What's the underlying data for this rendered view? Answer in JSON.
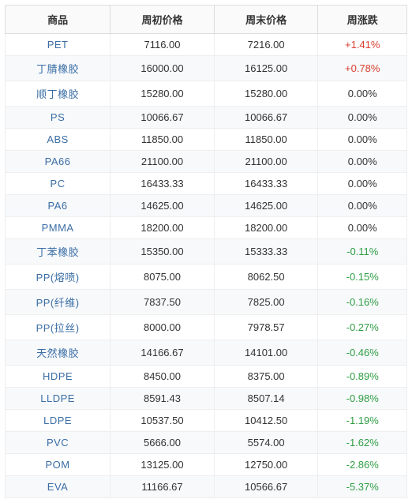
{
  "table": {
    "columns": [
      "商品",
      "周初价格",
      "周末价格",
      "周涨跌"
    ],
    "rows": [
      {
        "name": "PET",
        "start": "7116.00",
        "end": "7216.00",
        "change": "+1.41%",
        "dir": "up"
      },
      {
        "name": "丁腈橡胶",
        "start": "16000.00",
        "end": "16125.00",
        "change": "+0.78%",
        "dir": "up"
      },
      {
        "name": "顺丁橡胶",
        "start": "15280.00",
        "end": "15280.00",
        "change": "0.00%",
        "dir": "zero"
      },
      {
        "name": "PS",
        "start": "10066.67",
        "end": "10066.67",
        "change": "0.00%",
        "dir": "zero"
      },
      {
        "name": "ABS",
        "start": "11850.00",
        "end": "11850.00",
        "change": "0.00%",
        "dir": "zero"
      },
      {
        "name": "PA66",
        "start": "21100.00",
        "end": "21100.00",
        "change": "0.00%",
        "dir": "zero"
      },
      {
        "name": "PC",
        "start": "16433.33",
        "end": "16433.33",
        "change": "0.00%",
        "dir": "zero"
      },
      {
        "name": "PA6",
        "start": "14625.00",
        "end": "14625.00",
        "change": "0.00%",
        "dir": "zero"
      },
      {
        "name": "PMMA",
        "start": "18200.00",
        "end": "18200.00",
        "change": "0.00%",
        "dir": "zero"
      },
      {
        "name": "丁苯橡胶",
        "start": "15350.00",
        "end": "15333.33",
        "change": "-0.11%",
        "dir": "down"
      },
      {
        "name": "PP(熔喷)",
        "start": "8075.00",
        "end": "8062.50",
        "change": "-0.15%",
        "dir": "down"
      },
      {
        "name": "PP(纤维)",
        "start": "7837.50",
        "end": "7825.00",
        "change": "-0.16%",
        "dir": "down"
      },
      {
        "name": "PP(拉丝)",
        "start": "8000.00",
        "end": "7978.57",
        "change": "-0.27%",
        "dir": "down"
      },
      {
        "name": "天然橡胶",
        "start": "14166.67",
        "end": "14101.00",
        "change": "-0.46%",
        "dir": "down"
      },
      {
        "name": "HDPE",
        "start": "8450.00",
        "end": "8375.00",
        "change": "-0.89%",
        "dir": "down"
      },
      {
        "name": "LLDPE",
        "start": "8591.43",
        "end": "8507.14",
        "change": "-0.98%",
        "dir": "down"
      },
      {
        "name": "LDPE",
        "start": "10537.50",
        "end": "10412.50",
        "change": "-1.19%",
        "dir": "down"
      },
      {
        "name": "PVC",
        "start": "5666.00",
        "end": "5574.00",
        "change": "-1.62%",
        "dir": "down"
      },
      {
        "name": "POM",
        "start": "13125.00",
        "end": "12750.00",
        "change": "-2.86%",
        "dir": "down"
      },
      {
        "name": "EVA",
        "start": "11166.67",
        "end": "10566.67",
        "change": "-5.37%",
        "dir": "down"
      }
    ]
  }
}
